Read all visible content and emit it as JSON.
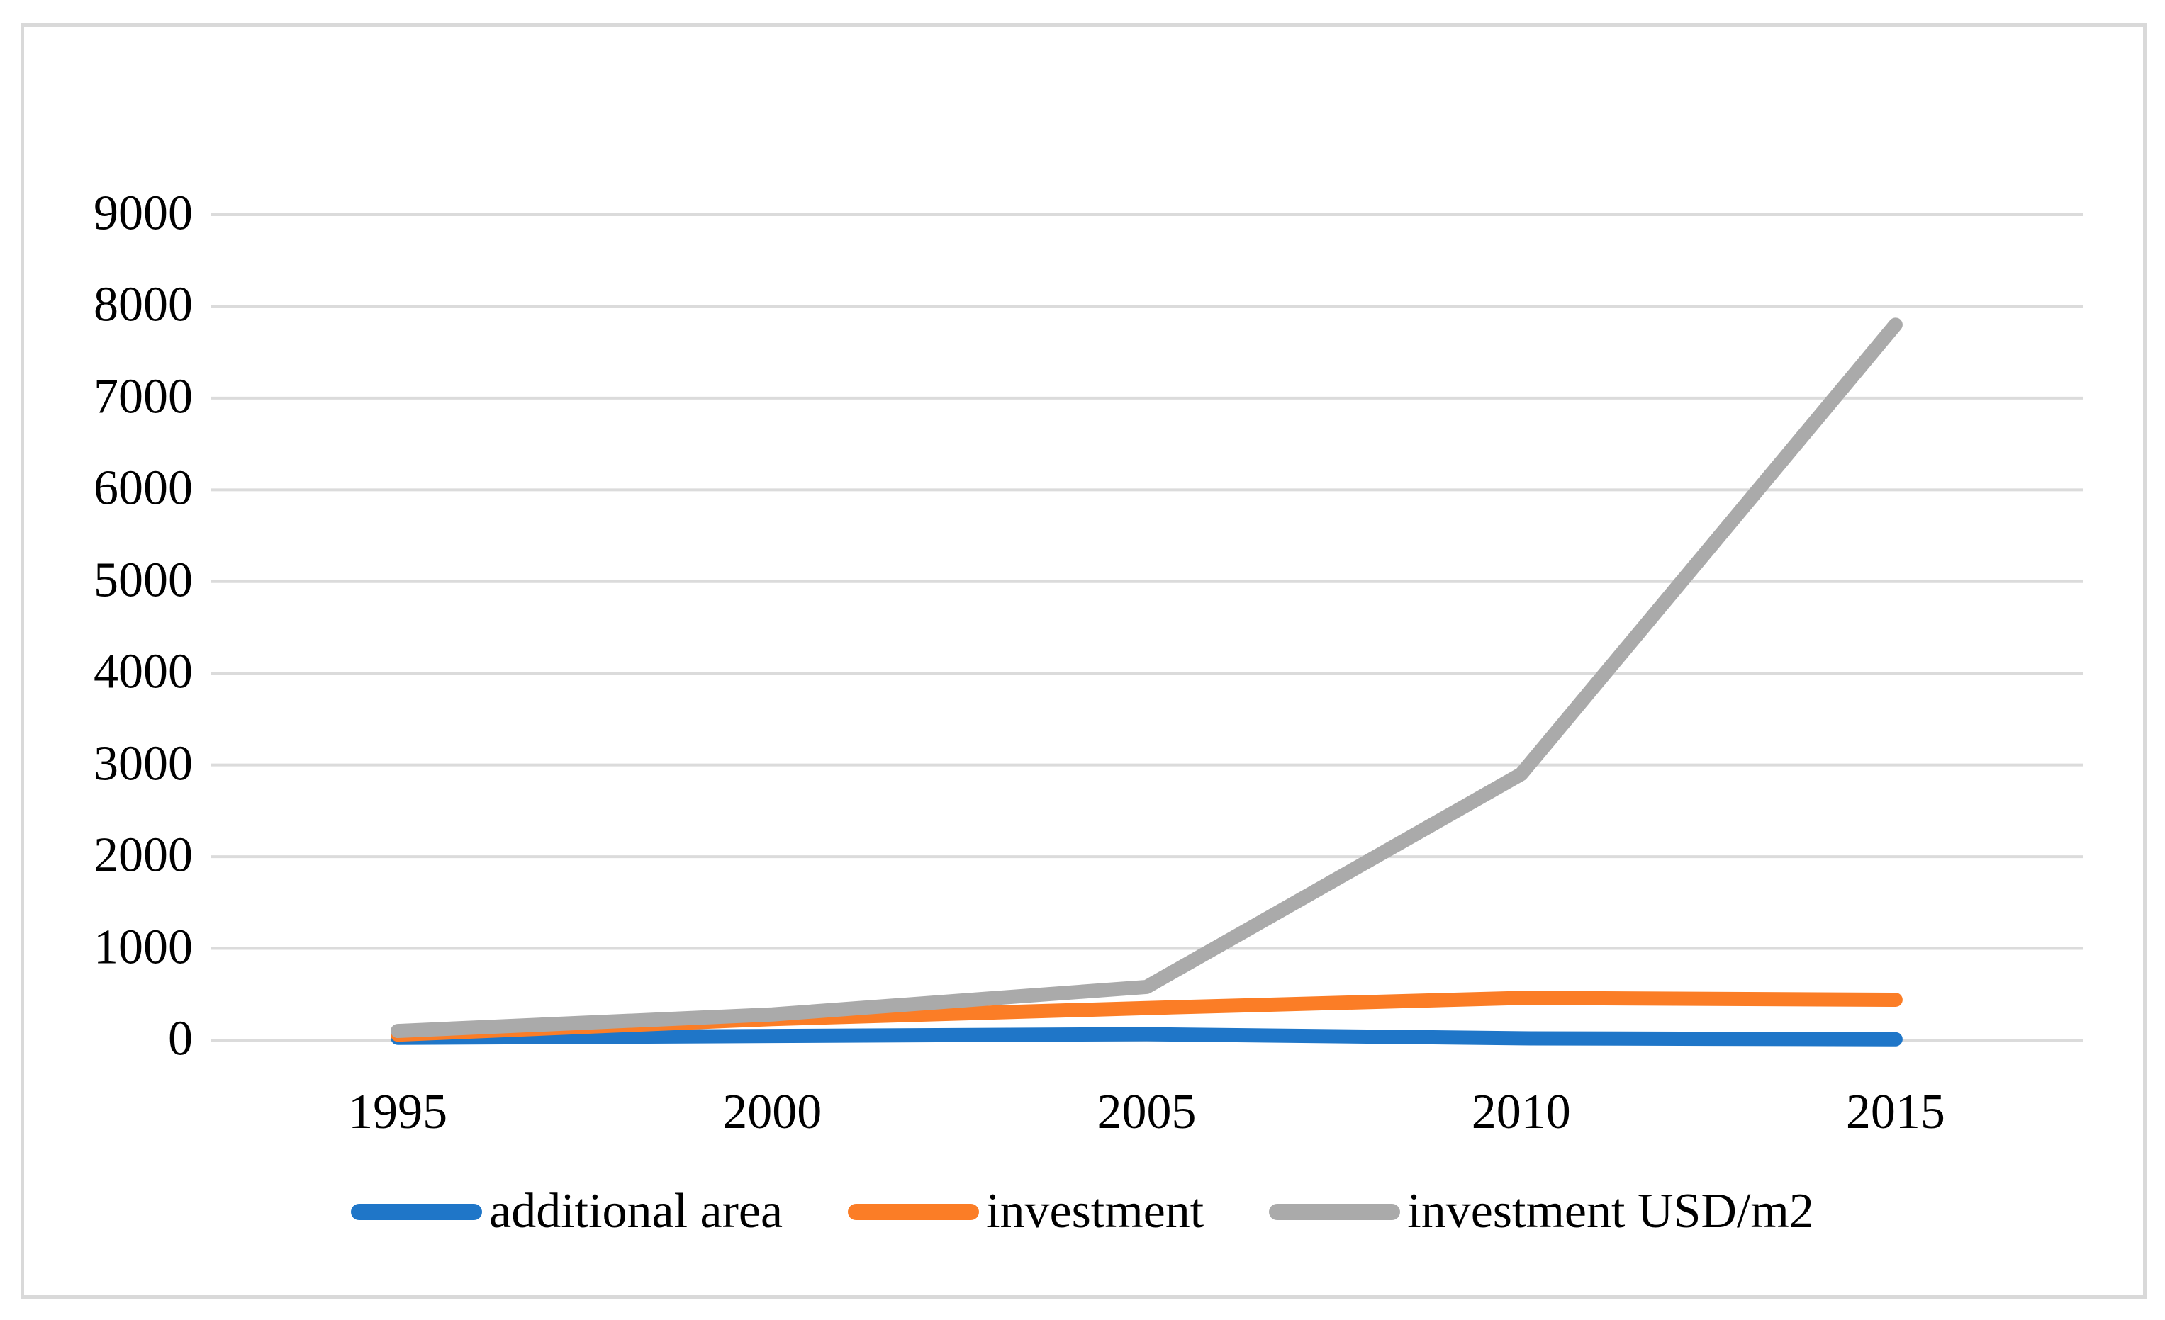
{
  "chart_data": {
    "type": "line",
    "categories": [
      "1995",
      "2000",
      "2005",
      "2010",
      "2015"
    ],
    "series": [
      {
        "name": "additional area",
        "color": "#1f76c8",
        "values": [
          25,
          45,
          65,
          20,
          10
        ]
      },
      {
        "name": "investment",
        "color": "#fb7d26",
        "values": [
          60,
          230,
          350,
          460,
          440
        ]
      },
      {
        "name": "investment USD/m2",
        "color": "#aaaaaa",
        "values": [
          100,
          280,
          580,
          2900,
          7800
        ]
      }
    ],
    "title": "",
    "xlabel": "",
    "ylabel": "",
    "ylim": [
      0,
      9000
    ],
    "y_ticks": [
      0,
      1000,
      2000,
      3000,
      4000,
      5000,
      6000,
      7000,
      8000,
      9000
    ],
    "grid": true,
    "legend_position": "bottom",
    "colors": {
      "gridline": "#dbdbdb",
      "frame_border": "#d9d9d9",
      "tick_text": "#000000",
      "background": "#ffffff"
    }
  }
}
